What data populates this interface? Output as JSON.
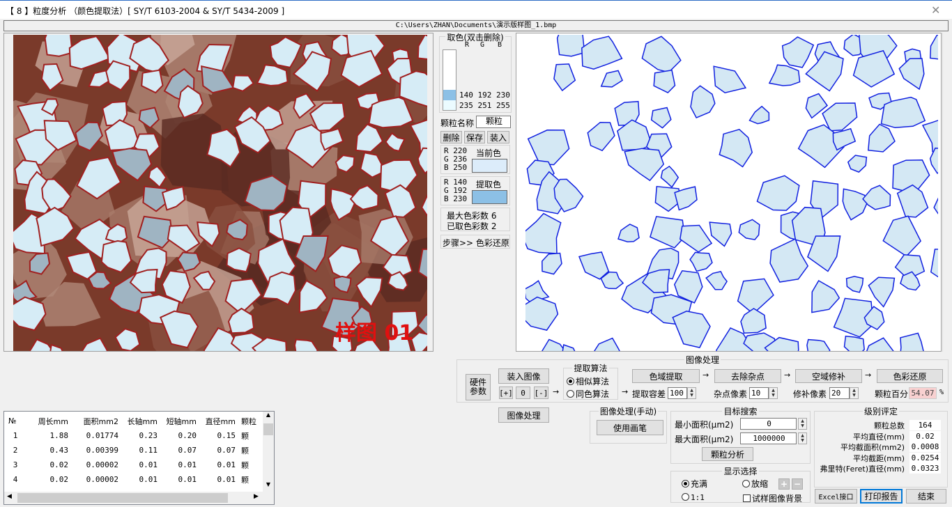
{
  "window": {
    "title": "【 8 】粒度分析   （颜色提取法）[ SY/T 6103-2004 & SY/T 5434-2009 ]",
    "close_icon": "close-icon"
  },
  "path": "C:\\Users\\ZHAN\\Documents\\演示版样图_1.bmp",
  "source_image": {
    "watermark": "样图 01"
  },
  "color_pick": {
    "title": "取色(双击删除)",
    "headers": [
      "R",
      "G",
      "B"
    ],
    "colors": [
      {
        "rgb": "140 192 230",
        "hex": "#8cc0e6"
      },
      {
        "rgb": "235 251 255",
        "hex": "#ebfbff"
      }
    ],
    "particle_name_label": "颗粒名称",
    "particle_name_value": "颗粒",
    "delete_label": "删除",
    "save_label": "保存",
    "load_label": "装入",
    "current_color": {
      "r": "R 220",
      "g": "G 236",
      "b": "B 250",
      "label": "当前色",
      "hex": "#dcecfa"
    },
    "extract_color": {
      "r": "R 140",
      "g": "G 192",
      "b": "B 230",
      "label": "提取色",
      "hex": "#8cc0e6"
    },
    "max_colors": "最大色彩数 6",
    "picked_colors": "已取色彩数 2",
    "step": "步骤>>  色彩还原"
  },
  "processing": {
    "title": "图像处理",
    "hardware_label": "硬件参数",
    "load_image_label": "装入图像",
    "zoom_in": "[+]",
    "zoom_reset": "0",
    "zoom_out": "[-]",
    "algo_title": "提取算法",
    "algo_similar": "相似算法",
    "algo_same": "同色算法",
    "gamut_extract": "色域提取",
    "tolerance_label": "提取容差",
    "tolerance_value": "100",
    "remove_noise": "去除杂点",
    "noise_label": "杂点像素",
    "noise_value": "10",
    "spatial_repair": "空域修补",
    "repair_label": "修补像素",
    "repair_value": "20",
    "color_restore": "色彩还原",
    "percent_label": "颗粒百分比",
    "percent_value": "54.07",
    "percent_unit": "%",
    "arrow": "→",
    "image_process_button": "图像处理"
  },
  "manual": {
    "title": "图像处理(手动)",
    "brush": "使用画笔"
  },
  "search": {
    "title": "目标搜索",
    "min_label": "最小面积(μm2)",
    "min_value": "0",
    "max_label": "最大面积(μm2)",
    "max_value": "1000000",
    "analyze": "颗粒分析"
  },
  "display": {
    "title": "显示选择",
    "fill": "充满",
    "scale": "放缩",
    "one_to_one": "1:1",
    "sample_bg": "试样图像背景",
    "plus": "+",
    "minus": "−"
  },
  "grade": {
    "title": "级别评定",
    "rows": [
      {
        "label": "颗粒总数",
        "value": "164"
      },
      {
        "label": "平均直径(mm)",
        "value": "0.02"
      },
      {
        "label": "平均截面积(mm2)",
        "value": "0.0008"
      },
      {
        "label": "平均截距(mm)",
        "value": "0.0254"
      },
      {
        "label": "弗里特(Feret)直径(mm)",
        "value": "0.0323"
      }
    ]
  },
  "footer": {
    "excel": "Excel接口",
    "print": "打印报告",
    "exit": "结束"
  },
  "table": {
    "headers": [
      "№",
      "周长mm",
      "面积mm2",
      "长轴mm",
      "短轴mm",
      "直径mm",
      "颗粒"
    ],
    "rows": [
      [
        "1",
        "1.88",
        "0.01774",
        "0.23",
        "0.20",
        "0.15",
        "颗"
      ],
      [
        "2",
        "0.43",
        "0.00399",
        "0.11",
        "0.07",
        "0.07",
        "颗"
      ],
      [
        "3",
        "0.02",
        "0.00002",
        "0.01",
        "0.01",
        "0.01",
        "颗"
      ],
      [
        "4",
        "0.02",
        "0.00002",
        "0.01",
        "0.01",
        "0.01",
        "颗"
      ]
    ]
  }
}
